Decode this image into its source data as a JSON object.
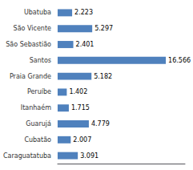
{
  "chart_data": {
    "type": "bar",
    "orientation": "horizontal",
    "categories": [
      "Ubatuba",
      "São Vicente",
      "São Sebastião",
      "Santos",
      "Praia Grande",
      "Peruíbe",
      "Itanhaém",
      "Guarujá",
      "Cubatão",
      "Caraguatatuba"
    ],
    "values": [
      2.223,
      5.297,
      2.401,
      16.566,
      5.182,
      1.402,
      1.715,
      4.779,
      2.007,
      3.091
    ],
    "color": "#4f81bd",
    "xlim": [
      0,
      19.5
    ],
    "grid": false,
    "data_labels": true,
    "tick_labels": "y"
  }
}
